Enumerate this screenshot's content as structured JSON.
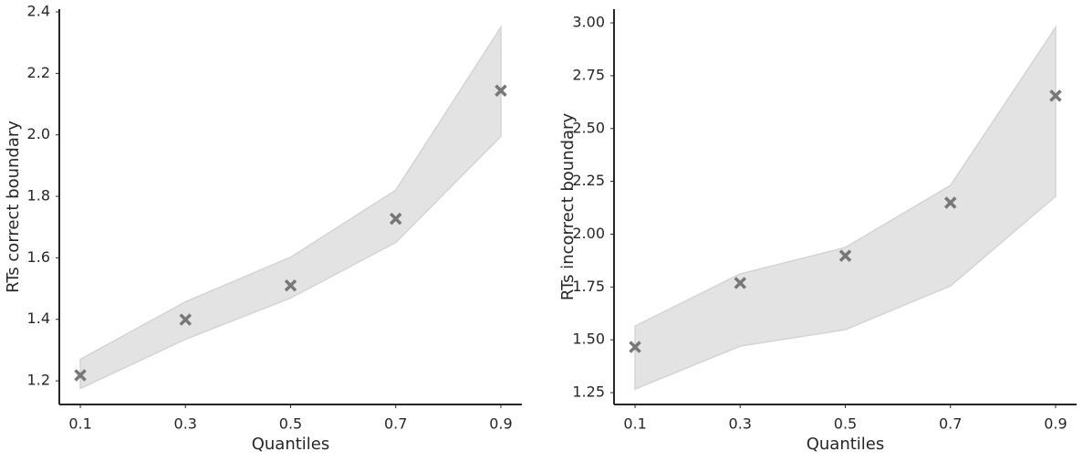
{
  "chart_data": [
    {
      "type": "scatter",
      "xlabel": "Quantiles",
      "ylabel": "RTs correct boundary",
      "x": [
        0.1,
        0.3,
        0.5,
        0.7,
        0.9
      ],
      "series": [
        {
          "color": "#777777",
          "values": [
            1.218,
            1.399,
            1.51,
            1.727,
            2.144
          ]
        }
      ],
      "band": {
        "color": "#e3e3e3",
        "lower": [
          1.175,
          1.335,
          1.469,
          1.65,
          1.995
        ],
        "upper": [
          1.27,
          1.457,
          1.602,
          1.82,
          2.35
        ]
      },
      "xlim": [
        0.06,
        0.94
      ],
      "ylim": [
        1.123,
        2.409
      ],
      "xticks": [
        0.1,
        0.3,
        0.5,
        0.7,
        0.9
      ],
      "yticks": [
        1.2,
        1.4,
        1.6,
        1.8,
        {
          "value": 2,
          "label": "2.0"
        },
        2.2,
        2.4
      ]
    },
    {
      "type": "scatter",
      "xlabel": "Quantiles",
      "ylabel": "RTs incorrect boundary",
      "x": [
        0.1,
        0.3,
        0.5,
        0.7,
        0.9
      ],
      "series": [
        {
          "color": "#777777",
          "values": [
            1.466,
            1.769,
            1.898,
            2.149,
            2.655
          ]
        }
      ],
      "band": {
        "color": "#e3e3e3",
        "lower": [
          1.267,
          1.47,
          1.548,
          1.755,
          2.179
        ],
        "upper": [
          1.565,
          1.812,
          1.937,
          2.231,
          2.978
        ]
      },
      "xlim": [
        0.06,
        0.94
      ],
      "ylim": [
        1.194,
        3.065
      ],
      "xticks": [
        0.1,
        0.3,
        0.5,
        0.7,
        0.9
      ],
      "yticks": [
        {
          "value": 1.25,
          "label": "1.25"
        },
        {
          "value": 1.5,
          "label": "1.50"
        },
        {
          "value": 1.75,
          "label": "1.75"
        },
        {
          "value": 2,
          "label": "2.00"
        },
        {
          "value": 2.25,
          "label": "2.25"
        },
        {
          "value": 2.5,
          "label": "2.50"
        },
        {
          "value": 2.75,
          "label": "2.75"
        },
        {
          "value": 3,
          "label": "3.00"
        }
      ]
    }
  ]
}
